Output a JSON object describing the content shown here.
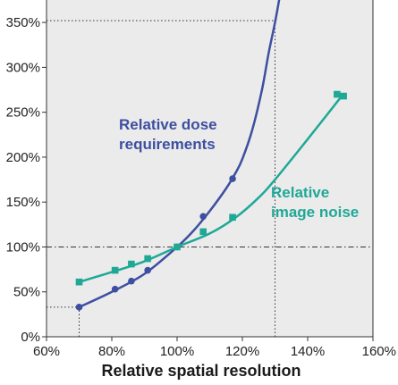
{
  "chart_data": {
    "type": "line",
    "title": "",
    "xlabel": "Relative spatial resolution",
    "ylabel": "",
    "xlim": [
      60,
      160
    ],
    "ylim": [
      0,
      375
    ],
    "x_ticks": [
      60,
      80,
      100,
      120,
      140,
      160
    ],
    "y_ticks": [
      0,
      50,
      100,
      150,
      200,
      250,
      300,
      350
    ],
    "x_tick_labels": [
      "60%",
      "80%",
      "100%",
      "120%",
      "140%",
      "160%"
    ],
    "y_tick_labels": [
      "0%",
      "50%",
      "100%",
      "150%",
      "200%",
      "250%",
      "300%",
      "350%"
    ],
    "grid": false,
    "background": "#ebebeb",
    "reference_lines": [
      {
        "style": "dash-dot",
        "orientation": "horizontal",
        "y": 100
      },
      {
        "style": "dotted",
        "orientation": "horizontal",
        "y": 352,
        "x_to": 130
      },
      {
        "style": "dotted",
        "orientation": "vertical",
        "x": 130
      },
      {
        "style": "dotted",
        "orientation": "horizontal",
        "y": 33,
        "x_to": 70
      },
      {
        "style": "dotted",
        "orientation": "vertical",
        "x": 70
      }
    ],
    "series": [
      {
        "name": "Relative dose requirements",
        "color": "#3d4fa0",
        "marker": "circle",
        "x": [
          70,
          81,
          86,
          91,
          100,
          108,
          117
        ],
        "y": [
          33,
          53,
          62,
          74,
          100,
          134,
          176
        ],
        "curve_x": [
          70,
          80,
          90,
          100,
          105,
          110,
          115,
          118,
          120,
          123,
          126,
          128,
          130,
          131.5
        ],
        "curve_y": [
          33,
          50,
          70,
          100,
          118,
          140,
          165,
          183,
          198,
          230,
          275,
          315,
          350,
          380
        ]
      },
      {
        "name": "Relative image noise",
        "color": "#1fa896",
        "marker": "square",
        "x": [
          70,
          81,
          86,
          91,
          100,
          108,
          117,
          149,
          151
        ],
        "y": [
          61,
          74,
          81,
          87,
          100,
          117,
          133,
          270,
          268
        ],
        "curve_x": [
          70,
          80,
          90,
          100,
          110,
          118,
          125,
          130,
          140,
          150
        ],
        "curve_y": [
          61,
          72,
          84,
          100,
          115,
          133,
          155,
          175,
          220,
          266
        ]
      }
    ]
  },
  "annotations": {
    "dose_line1": "Relative dose",
    "dose_line2": "requirements",
    "noise_line1": "Relative",
    "noise_line2": "image noise"
  }
}
